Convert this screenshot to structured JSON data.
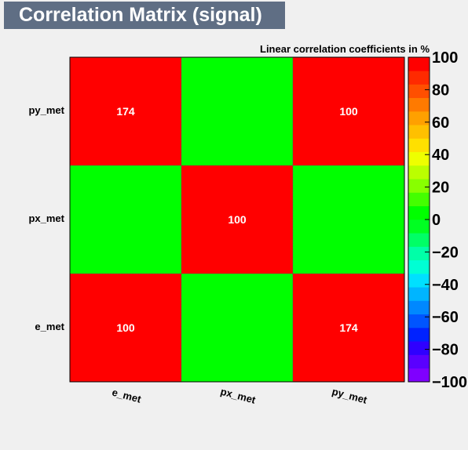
{
  "title": "Correlation Matrix (signal)",
  "chart_data": {
    "type": "heatmap",
    "title": "Correlation Matrix (signal)",
    "subtitle": "Linear correlation coefficients in %",
    "x_categories": [
      "e_met",
      "px_met",
      "py_met"
    ],
    "y_categories": [
      "e_met",
      "px_met",
      "py_met"
    ],
    "values": [
      [
        100,
        0,
        174
      ],
      [
        0,
        100,
        0
      ],
      [
        174,
        0,
        100
      ]
    ],
    "cell_labels": [
      [
        "100",
        "",
        "174"
      ],
      [
        "",
        "100",
        ""
      ],
      [
        "174",
        "",
        "100"
      ]
    ],
    "zlim": [
      -100,
      100
    ],
    "colorbar_ticks": [
      -100,
      -80,
      -60,
      -40,
      -20,
      0,
      20,
      40,
      60,
      80,
      100
    ],
    "colorbar_tick_labels": [
      "−100",
      "−80",
      "−60",
      "−40",
      "−20",
      "0",
      "20",
      "40",
      "60",
      "80",
      "100"
    ],
    "palette": [
      "#7f00ff",
      "#5a00ff",
      "#2f00ff",
      "#0022ff",
      "#0055ff",
      "#0088ff",
      "#00b5ff",
      "#00e0ff",
      "#00ffd4",
      "#00ffa8",
      "#00ff66",
      "#00ff22",
      "#00ff00",
      "#44ff00",
      "#88ff00",
      "#bbff00",
      "#eeff00",
      "#ffe000",
      "#ffc000",
      "#ffa000",
      "#ff7a00",
      "#ff4f00",
      "#ff2a00",
      "#ff0000"
    ],
    "colors": {
      "high": "#ff0000",
      "zero": "#00ff00"
    }
  }
}
